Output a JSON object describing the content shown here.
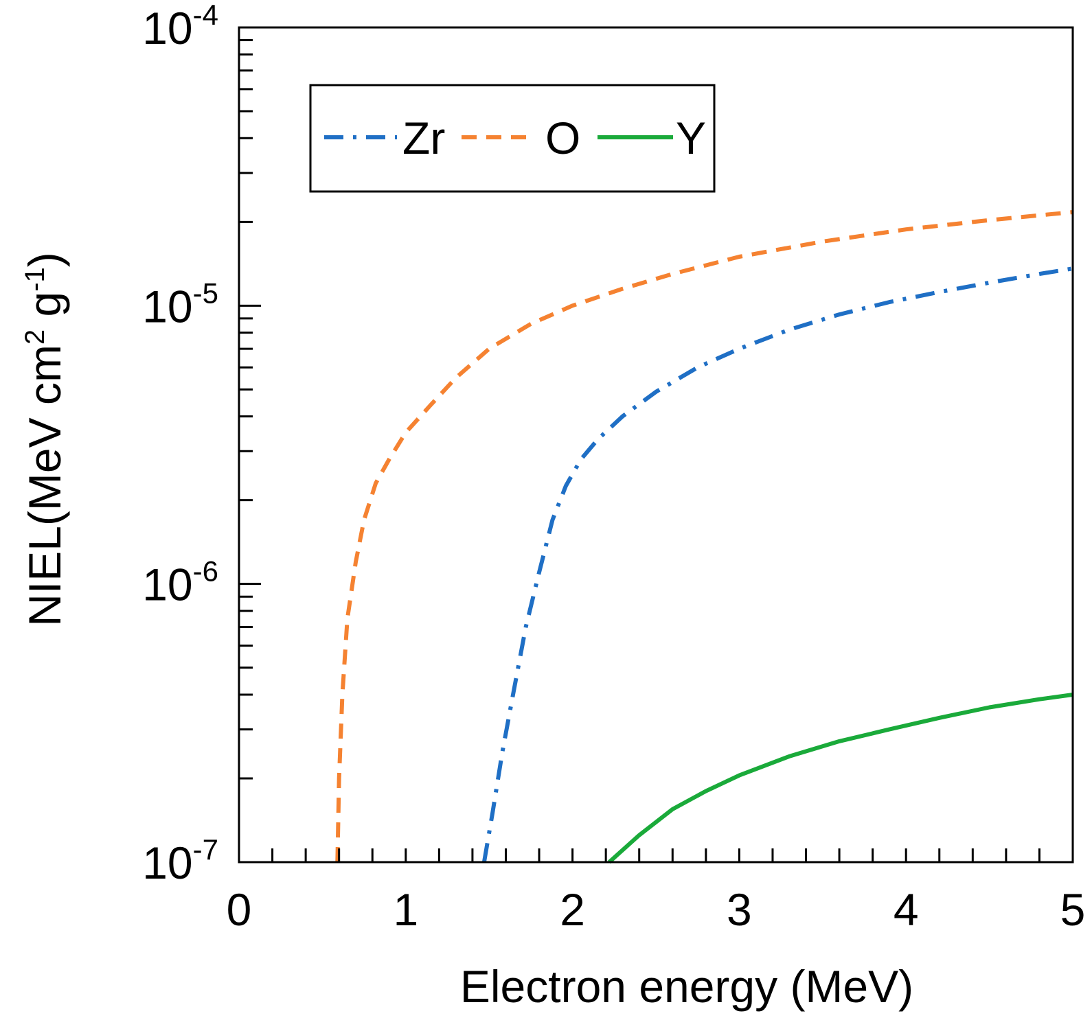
{
  "chart_data": {
    "type": "line",
    "title": "",
    "xlabel": "Electron energy (MeV)",
    "ylabel": {
      "base": "NIEL(MeV cm",
      "exp1": "2",
      "mid": " g",
      "exp2": "-1",
      "end": ")"
    },
    "xlim": [
      0,
      5
    ],
    "ylim": [
      1e-07,
      0.0001
    ],
    "yscale": "log",
    "x_ticks": [
      {
        "value": 0,
        "label": "0"
      },
      {
        "value": 1,
        "label": "1"
      },
      {
        "value": 2,
        "label": "2"
      },
      {
        "value": 3,
        "label": "3"
      },
      {
        "value": 4,
        "label": "4"
      },
      {
        "value": 5,
        "label": "5"
      }
    ],
    "y_ticks": [
      {
        "value": 1e-07,
        "base": "10",
        "exp": "-7"
      },
      {
        "value": 1e-06,
        "base": "10",
        "exp": "-6"
      },
      {
        "value": 1e-05,
        "base": "10",
        "exp": "-5"
      },
      {
        "value": 0.0001,
        "base": "10",
        "exp": "-4"
      }
    ],
    "legend_position": "top-left",
    "series": [
      {
        "name": "Zr",
        "color": "#1f6fc5",
        "style": "dash-dot",
        "x": [
          1.47,
          1.52,
          1.58,
          1.65,
          1.72,
          1.8,
          1.88,
          1.96,
          2.05,
          2.15,
          2.3,
          2.5,
          2.75,
          3.0,
          3.3,
          3.6,
          3.9,
          4.2,
          4.5,
          4.8,
          5.0
        ],
        "y": [
          1e-07,
          1.5e-07,
          2.5e-07,
          4.2e-07,
          7e-07,
          1.1e-06,
          1.7e-06,
          2.25e-06,
          2.8e-06,
          3.3e-06,
          4e-06,
          4.9e-06,
          6e-06,
          7e-06,
          8.2e-06,
          9.3e-06,
          1.03e-05,
          1.12e-05,
          1.21e-05,
          1.3e-05,
          1.36e-05
        ]
      },
      {
        "name": "O",
        "color": "#f58231",
        "style": "dashed",
        "x": [
          0.59,
          0.6,
          0.62,
          0.65,
          0.7,
          0.75,
          0.82,
          0.9,
          1.0,
          1.15,
          1.3,
          1.5,
          1.75,
          2.0,
          2.3,
          2.6,
          3.0,
          3.5,
          4.0,
          4.5,
          5.0
        ],
        "y": [
          1e-07,
          2e-07,
          4e-07,
          7.5e-07,
          1.2e-06,
          1.7e-06,
          2.3e-06,
          2.8e-06,
          3.5e-06,
          4.4e-06,
          5.5e-06,
          7e-06,
          8.6e-06,
          1e-05,
          1.15e-05,
          1.3e-05,
          1.5e-05,
          1.7e-05,
          1.88e-05,
          2.03e-05,
          2.17e-05
        ]
      },
      {
        "name": "Y",
        "color": "#1aaa3a",
        "style": "solid",
        "x": [
          2.22,
          2.4,
          2.6,
          2.8,
          3.0,
          3.3,
          3.6,
          3.9,
          4.2,
          4.5,
          4.8,
          5.0
        ],
        "y": [
          1e-07,
          1.25e-07,
          1.55e-07,
          1.8e-07,
          2.05e-07,
          2.4e-07,
          2.72e-07,
          3e-07,
          3.3e-07,
          3.6e-07,
          3.85e-07,
          4e-07
        ]
      }
    ]
  }
}
